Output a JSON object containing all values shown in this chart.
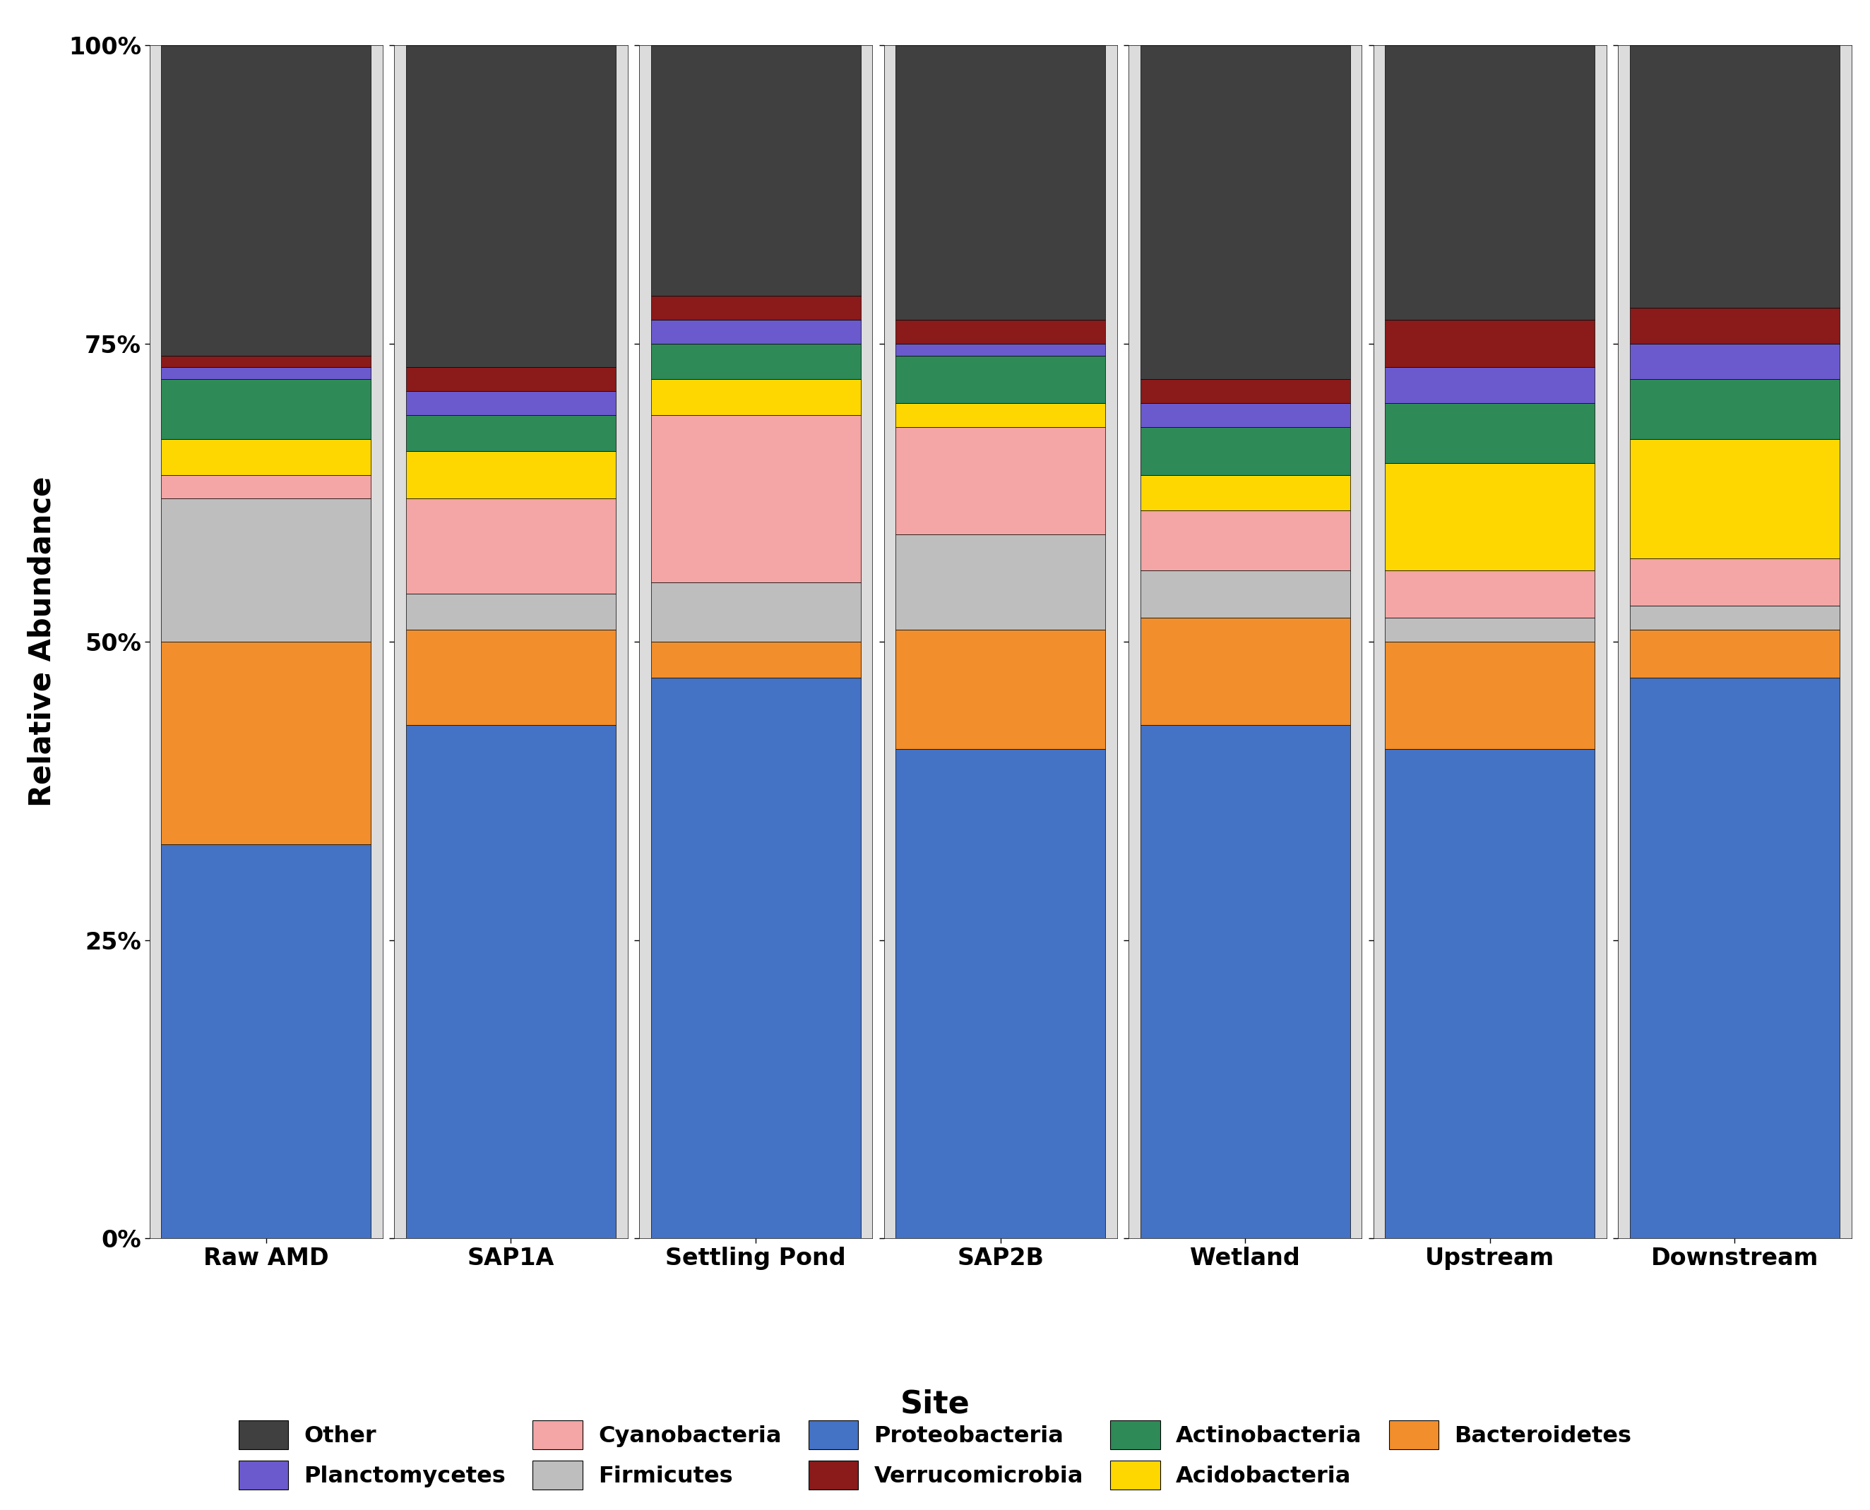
{
  "sites": [
    "Raw AMD",
    "SAP1A",
    "Settling Pond",
    "SAP2B",
    "Wetland",
    "Upstream",
    "Downstream"
  ],
  "taxa": [
    "Proteobacteria",
    "Bacteroidetes",
    "Firmicutes",
    "Cyanobacteria",
    "Acidobacteria",
    "Actinobacteria",
    "Planctomycetes",
    "Verrucomicrobia",
    "Other"
  ],
  "colors": {
    "Proteobacteria": "#4472C4",
    "Bacteroidetes": "#F28E2B",
    "Firmicutes": "#BEBEBE",
    "Cyanobacteria": "#F4A5A5",
    "Acidobacteria": "#FFD700",
    "Actinobacteria": "#2E8B57",
    "Planctomycetes": "#6A5ACD",
    "Verrucomicrobia": "#8B1A1A",
    "Other": "#404040"
  },
  "data": {
    "Proteobacteria": [
      33,
      43,
      47,
      41,
      43,
      41,
      47
    ],
    "Bacteroidetes": [
      17,
      8,
      3,
      10,
      9,
      9,
      4
    ],
    "Firmicutes": [
      12,
      3,
      5,
      8,
      4,
      2,
      2
    ],
    "Cyanobacteria": [
      2,
      8,
      14,
      9,
      5,
      4,
      4
    ],
    "Acidobacteria": [
      3,
      4,
      3,
      2,
      3,
      9,
      10
    ],
    "Actinobacteria": [
      5,
      3,
      3,
      4,
      4,
      5,
      5
    ],
    "Planctomycetes": [
      1,
      2,
      2,
      1,
      2,
      3,
      3
    ],
    "Verrucomicrobia": [
      1,
      2,
      2,
      2,
      2,
      4,
      3
    ],
    "Other": [
      26,
      27,
      21,
      23,
      28,
      23,
      22
    ]
  },
  "ylabel": "Relative Abundance",
  "xlabel": "Site",
  "yticks": [
    0,
    25,
    50,
    75,
    100
  ],
  "yticklabels": [
    "0%",
    "25%",
    "50%",
    "75%",
    "100%"
  ],
  "panel_bg_color": "#DCDCDC",
  "separator_color": "#FFFFFF",
  "bar_edge_color": "black",
  "bar_linewidth": 0.5,
  "legend_order": [
    [
      "Other",
      "Planctomycetes",
      "Cyanobacteria",
      "Firmicutes",
      "Proteobacteria"
    ],
    [
      "Verrucomicrobia",
      "Actinobacteria",
      "Acidobacteria",
      "Bacteroidetes",
      ""
    ]
  ]
}
